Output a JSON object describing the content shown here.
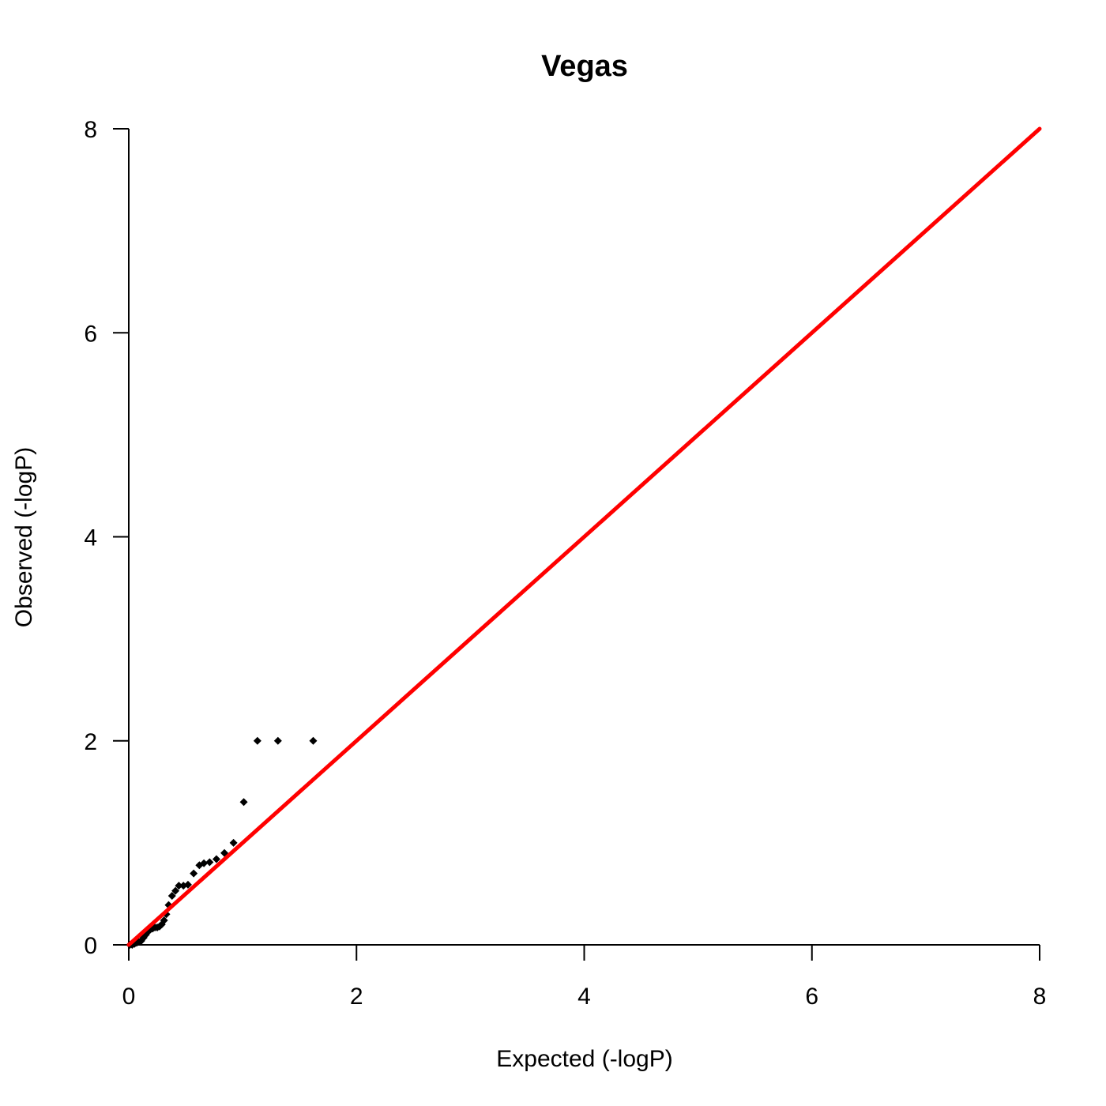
{
  "chart_data": {
    "type": "scatter",
    "title": "Vegas",
    "xlabel": "Expected (-logP)",
    "ylabel": "Observed (-logP)",
    "xlim": [
      0,
      8
    ],
    "ylim": [
      0,
      8
    ],
    "x_ticks": [
      "0",
      "2",
      "4",
      "6",
      "8"
    ],
    "y_ticks": [
      "0",
      "2",
      "4",
      "6",
      "8"
    ],
    "grid": false,
    "series": [
      {
        "marker": "diamond",
        "color": "#000000",
        "points": [
          {
            "x": 0.01,
            "y": 0.0
          },
          {
            "x": 0.03,
            "y": 0.0
          },
          {
            "x": 0.05,
            "y": 0.01
          },
          {
            "x": 0.07,
            "y": 0.02
          },
          {
            "x": 0.09,
            "y": 0.03
          },
          {
            "x": 0.11,
            "y": 0.04
          },
          {
            "x": 0.13,
            "y": 0.07
          },
          {
            "x": 0.15,
            "y": 0.1
          },
          {
            "x": 0.17,
            "y": 0.13
          },
          {
            "x": 0.19,
            "y": 0.15
          },
          {
            "x": 0.21,
            "y": 0.16
          },
          {
            "x": 0.23,
            "y": 0.17
          },
          {
            "x": 0.25,
            "y": 0.17
          },
          {
            "x": 0.27,
            "y": 0.18
          },
          {
            "x": 0.29,
            "y": 0.2
          },
          {
            "x": 0.31,
            "y": 0.24
          },
          {
            "x": 0.33,
            "y": 0.3
          },
          {
            "x": 0.35,
            "y": 0.39
          },
          {
            "x": 0.38,
            "y": 0.48
          },
          {
            "x": 0.41,
            "y": 0.53
          },
          {
            "x": 0.44,
            "y": 0.58
          },
          {
            "x": 0.48,
            "y": 0.58
          },
          {
            "x": 0.52,
            "y": 0.59
          },
          {
            "x": 0.57,
            "y": 0.7
          },
          {
            "x": 0.62,
            "y": 0.78
          },
          {
            "x": 0.66,
            "y": 0.8
          },
          {
            "x": 0.71,
            "y": 0.81
          },
          {
            "x": 0.77,
            "y": 0.84
          },
          {
            "x": 0.84,
            "y": 0.9
          },
          {
            "x": 0.92,
            "y": 1.0
          },
          {
            "x": 1.01,
            "y": 1.4
          },
          {
            "x": 1.13,
            "y": 2.0
          },
          {
            "x": 1.31,
            "y": 2.0
          },
          {
            "x": 1.62,
            "y": 2.0
          }
        ]
      }
    ],
    "reference_line": {
      "from": [
        0,
        0
      ],
      "to": [
        8,
        8
      ],
      "color": "#ff0000"
    }
  }
}
